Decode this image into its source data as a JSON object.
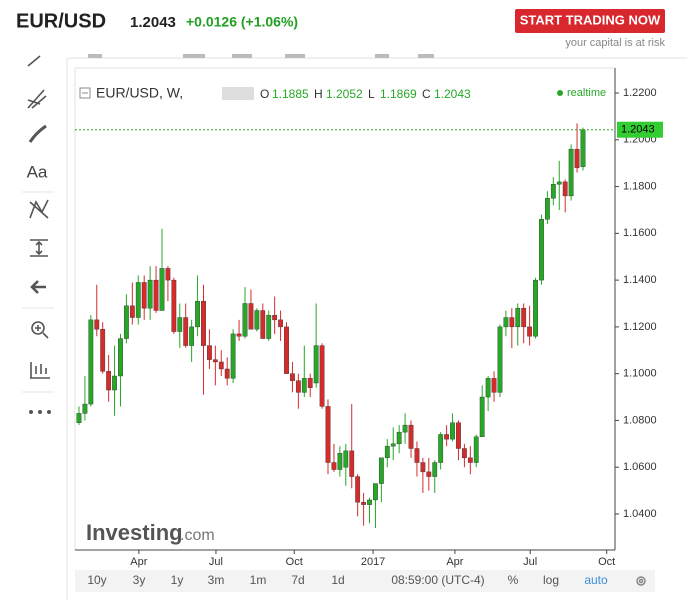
{
  "header": {
    "symbol": "EUR/USD",
    "price": "1.2043",
    "change": "+0.0126 (+1.06%)",
    "button": "START TRADING NOW",
    "risk_note": "your capital is at risk"
  },
  "toolbar": {
    "text_tool": "Aa"
  },
  "chart_data": {
    "type": "candlestick",
    "symbol_label": "EUR/USD, W,",
    "ohlc_letters": [
      "O",
      "H",
      "L",
      "C"
    ],
    "realtime": "realtime",
    "watermark": "Investing",
    "watermark_suffix": ".com",
    "up_color": "#26a826",
    "down_color": "#d62b2b",
    "last_price": 1.2043,
    "xlim": [
      -0.67,
      90.4
    ],
    "ylim": [
      1.0246,
      1.2277
    ],
    "xticks": [
      {
        "value": 10.1,
        "label": "Apr"
      },
      {
        "value": 23.1,
        "label": "Jul"
      },
      {
        "value": 36.3,
        "label": "Oct"
      },
      {
        "value": 49.6,
        "label": "2017"
      },
      {
        "value": 63.4,
        "label": "Apr"
      },
      {
        "value": 76.1,
        "label": "Jul"
      },
      {
        "value": 89.0,
        "label": "Oct"
      }
    ],
    "yticks": [
      {
        "value": 1.04,
        "label": "1.0400"
      },
      {
        "value": 1.06,
        "label": "1.0600"
      },
      {
        "value": 1.08,
        "label": "1.0800"
      },
      {
        "value": 1.1,
        "label": "1.1000"
      },
      {
        "value": 1.12,
        "label": "1.1200"
      },
      {
        "value": 1.14,
        "label": "1.1400"
      },
      {
        "value": 1.16,
        "label": "1.1600"
      },
      {
        "value": 1.18,
        "label": "1.1800"
      },
      {
        "value": 1.2,
        "label": "1.2000"
      },
      {
        "value": 1.22,
        "label": "1.2200"
      }
    ],
    "open": [
      1.079,
      1.083,
      1.087,
      1.123,
      1.119,
      1.101,
      1.093,
      1.099,
      1.115,
      1.129,
      1.124,
      1.139,
      1.128,
      1.14,
      1.127,
      1.145,
      1.14,
      1.118,
      1.124,
      1.112,
      1.12,
      1.131,
      1.112,
      1.106,
      1.105,
      1.102,
      1.098,
      1.117,
      1.116,
      1.13,
      1.119,
      1.127,
      1.115,
      1.125,
      1.123,
      1.12,
      1.1,
      1.097,
      1.092,
      1.098,
      1.096,
      1.112,
      1.086,
      1.062,
      1.059,
      1.06,
      1.067,
      1.056,
      1.045,
      1.044,
      1.046,
      1.053,
      1.064,
      1.069,
      1.07,
      1.075,
      1.078,
      1.068,
      1.062,
      1.058,
      1.056,
      1.062,
      1.074,
      1.072,
      1.079,
      1.068,
      1.064,
      1.062,
      1.073,
      1.09,
      1.098,
      1.092,
      1.12,
      1.124,
      1.12,
      1.128,
      1.12,
      1.116,
      1.14,
      1.166,
      1.175,
      1.181,
      1.182,
      1.176,
      1.196,
      1.1885
    ],
    "high": [
      1.086,
      1.099,
      1.125,
      1.138,
      1.122,
      1.108,
      1.112,
      1.117,
      1.134,
      1.139,
      1.142,
      1.142,
      1.146,
      1.146,
      1.162,
      1.146,
      1.141,
      1.13,
      1.13,
      1.123,
      1.142,
      1.138,
      1.119,
      1.112,
      1.11,
      1.107,
      1.119,
      1.123,
      1.137,
      1.136,
      1.128,
      1.13,
      1.127,
      1.133,
      1.127,
      1.122,
      1.105,
      1.1,
      1.112,
      1.1,
      1.13,
      1.113,
      1.089,
      1.07,
      1.069,
      1.07,
      1.087,
      1.057,
      1.049,
      1.047,
      1.053,
      1.062,
      1.072,
      1.077,
      1.078,
      1.083,
      1.08,
      1.071,
      1.064,
      1.064,
      1.063,
      1.075,
      1.078,
      1.083,
      1.08,
      1.07,
      1.069,
      1.074,
      1.095,
      1.099,
      1.101,
      1.121,
      1.127,
      1.128,
      1.13,
      1.13,
      1.129,
      1.141,
      1.168,
      1.178,
      1.184,
      1.191,
      1.183,
      1.198,
      1.207,
      1.2052
    ],
    "low": [
      1.078,
      1.08,
      1.086,
      1.116,
      1.1,
      1.088,
      1.082,
      1.086,
      1.113,
      1.121,
      1.121,
      1.123,
      1.123,
      1.126,
      1.127,
      1.131,
      1.117,
      1.111,
      1.111,
      1.105,
      1.116,
      1.091,
      1.102,
      1.095,
      1.099,
      1.095,
      1.096,
      1.114,
      1.115,
      1.119,
      1.118,
      1.115,
      1.114,
      1.117,
      1.114,
      1.1,
      1.092,
      1.085,
      1.09,
      1.09,
      1.094,
      1.085,
      1.057,
      1.058,
      1.056,
      1.052,
      1.051,
      1.039,
      1.035,
      1.036,
      1.034,
      1.045,
      1.06,
      1.063,
      1.066,
      1.07,
      1.064,
      1.056,
      1.049,
      1.05,
      1.049,
      1.059,
      1.069,
      1.071,
      1.063,
      1.06,
      1.057,
      1.06,
      1.073,
      1.084,
      1.088,
      1.09,
      1.116,
      1.111,
      1.112,
      1.113,
      1.112,
      1.115,
      1.138,
      1.164,
      1.172,
      1.17,
      1.169,
      1.174,
      1.186,
      1.1869
    ],
    "close": [
      1.083,
      1.087,
      1.123,
      1.119,
      1.101,
      1.093,
      1.099,
      1.115,
      1.129,
      1.124,
      1.139,
      1.128,
      1.14,
      1.127,
      1.145,
      1.14,
      1.118,
      1.124,
      1.112,
      1.12,
      1.131,
      1.112,
      1.106,
      1.105,
      1.102,
      1.098,
      1.117,
      1.116,
      1.13,
      1.119,
      1.127,
      1.115,
      1.125,
      1.123,
      1.12,
      1.1,
      1.097,
      1.092,
      1.098,
      1.094,
      1.112,
      1.086,
      1.062,
      1.059,
      1.066,
      1.067,
      1.056,
      1.045,
      1.044,
      1.046,
      1.053,
      1.064,
      1.069,
      1.07,
      1.075,
      1.078,
      1.068,
      1.062,
      1.058,
      1.056,
      1.062,
      1.074,
      1.072,
      1.079,
      1.068,
      1.064,
      1.062,
      1.073,
      1.09,
      1.098,
      1.092,
      1.12,
      1.124,
      1.12,
      1.128,
      1.12,
      1.116,
      1.14,
      1.166,
      1.175,
      1.181,
      1.182,
      1.176,
      1.196,
      1.188,
      1.2043
    ]
  },
  "bottom_bar": {
    "ranges": [
      "10y",
      "3y",
      "1y",
      "3m",
      "1m",
      "7d",
      "1d"
    ],
    "time": "08:59:00 (UTC-4)",
    "options": [
      "%",
      "log",
      "auto"
    ]
  }
}
